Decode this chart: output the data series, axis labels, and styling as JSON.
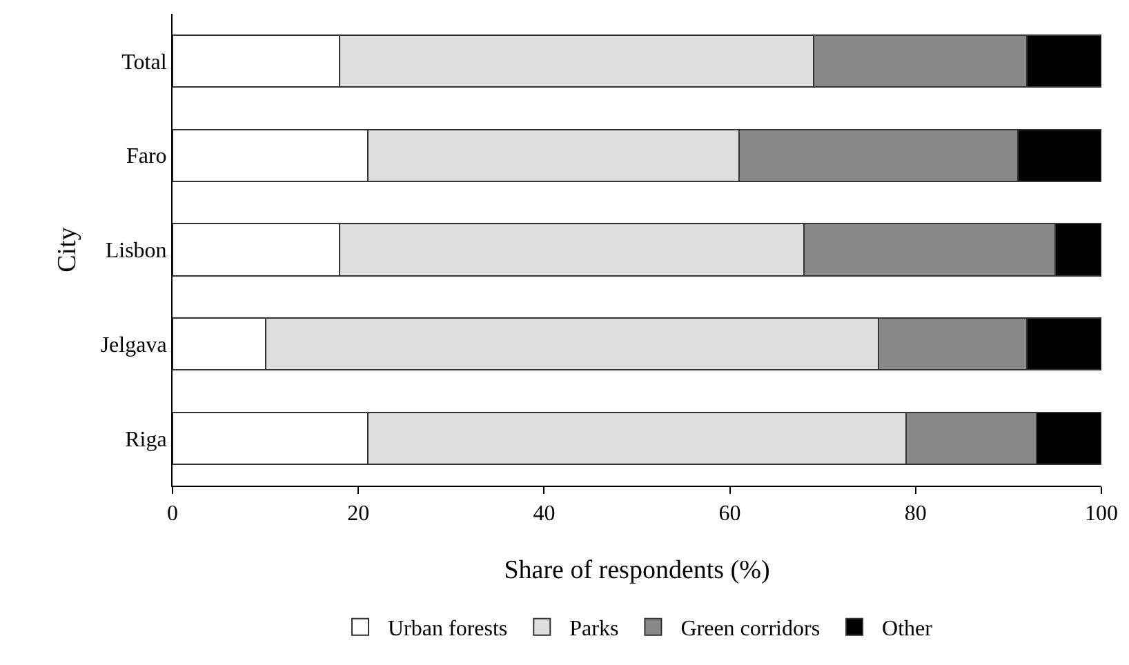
{
  "chart_data": {
    "type": "bar",
    "orientation": "horizontal",
    "stacked": true,
    "xlabel": "Share of respondents (%)",
    "ylabel": "City",
    "categories": [
      "Total",
      "Faro",
      "Lisbon",
      "Jelgava",
      "Riga"
    ],
    "series": [
      {
        "name": "Urban forests",
        "color": "#ffffff",
        "values": [
          18,
          21,
          18,
          10,
          21
        ]
      },
      {
        "name": "Parks",
        "color": "#dddddd",
        "values": [
          51,
          40,
          50,
          66,
          58
        ]
      },
      {
        "name": "Green corridors",
        "color": "#888888",
        "values": [
          23,
          30,
          27,
          16,
          14
        ]
      },
      {
        "name": "Other",
        "color": "#000000",
        "values": [
          8,
          9,
          5,
          8,
          7
        ]
      }
    ],
    "xlim": [
      0,
      100
    ],
    "xticks": [
      0,
      20,
      40,
      60,
      80,
      100
    ],
    "grid": false,
    "legend": "bottom"
  }
}
